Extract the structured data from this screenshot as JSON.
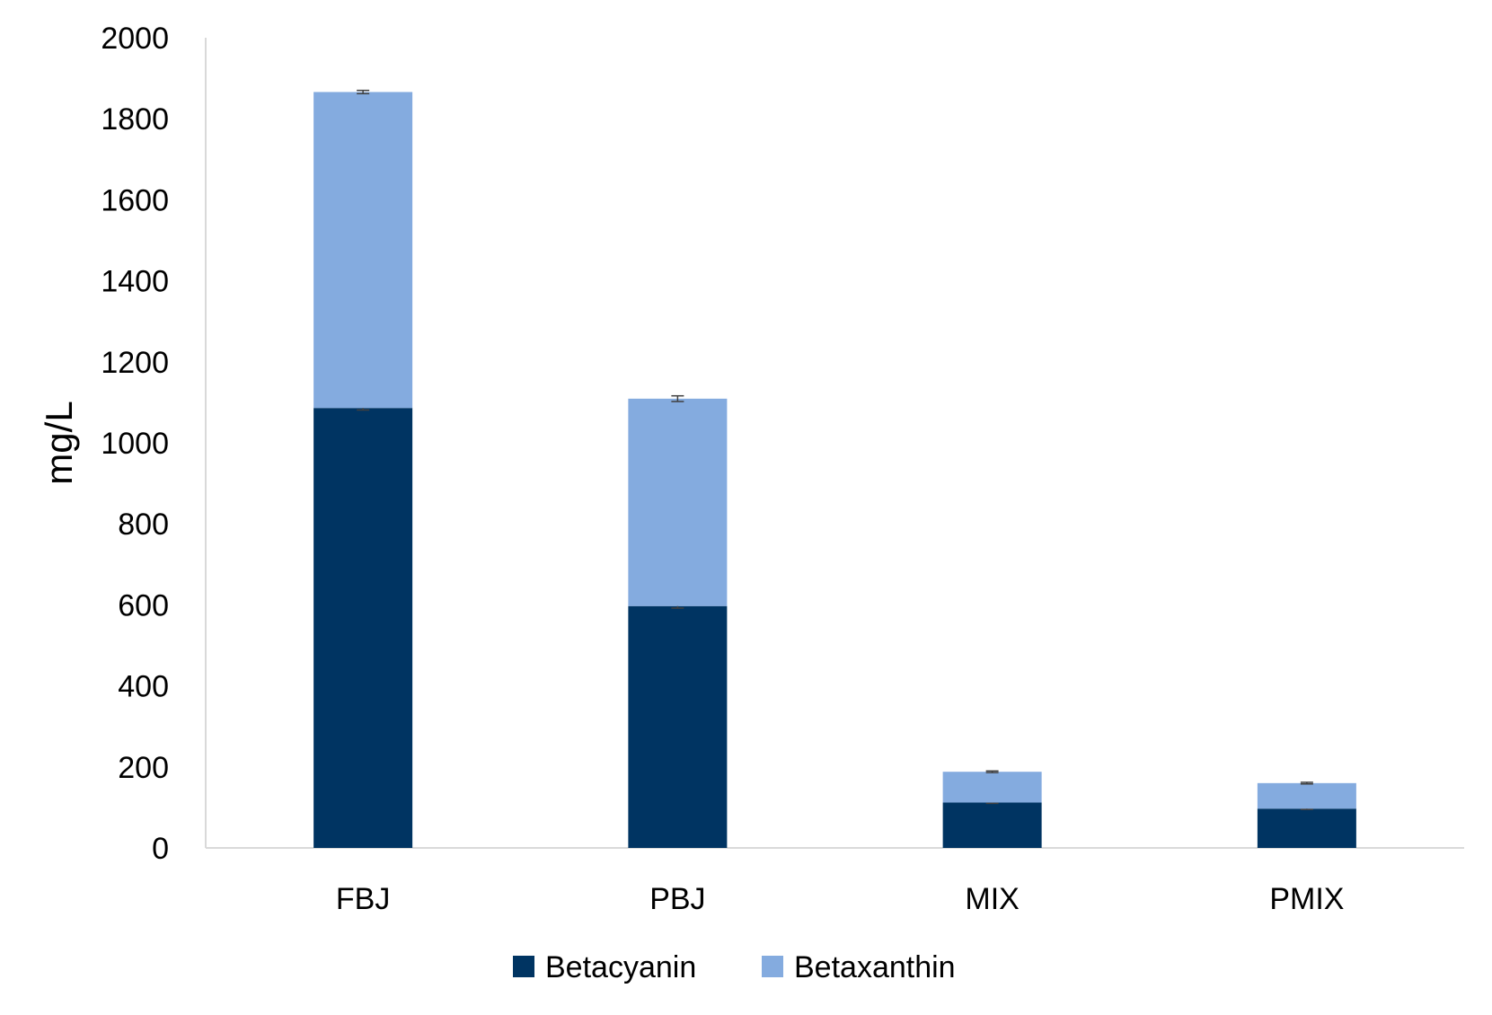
{
  "chart_data": {
    "type": "bar",
    "stacked": true,
    "title": "",
    "xlabel": "",
    "ylabel": "mg/L",
    "ylim": [
      0,
      2000
    ],
    "yticks": [
      0,
      200,
      400,
      600,
      800,
      1000,
      1200,
      1400,
      1600,
      1800,
      2000
    ],
    "grid": false,
    "legend_position": "bottom",
    "categories": [
      "FBJ",
      "PBJ",
      "MIX",
      "PMIX"
    ],
    "series": [
      {
        "name": "Betacyanin",
        "color": "#003462",
        "values": [
          1086,
          597,
          112,
          97
        ],
        "error": [
          5,
          5,
          2,
          2
        ]
      },
      {
        "name": "Betaxanthin",
        "color": "#84ABDF",
        "values": [
          780,
          512,
          76,
          63
        ],
        "error": [
          4,
          7,
          2,
          2
        ]
      }
    ]
  }
}
